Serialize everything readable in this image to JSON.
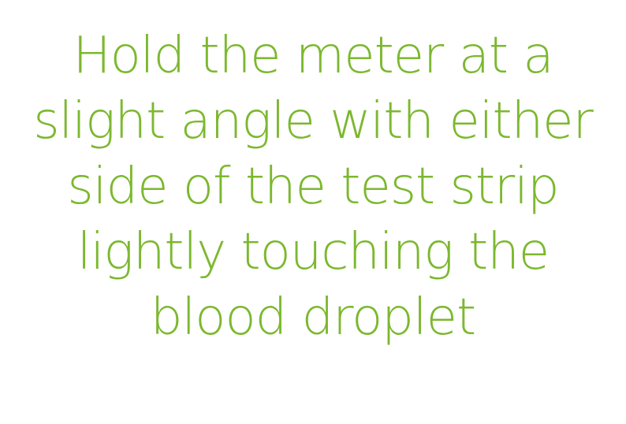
{
  "instruction": {
    "lines": [
      "Hold the meter at a",
      "slight angle with either",
      "side of the test strip",
      "lightly touching the",
      "blood droplet"
    ]
  },
  "colors": {
    "text": "#7cb82f",
    "background": "#ffffff"
  }
}
